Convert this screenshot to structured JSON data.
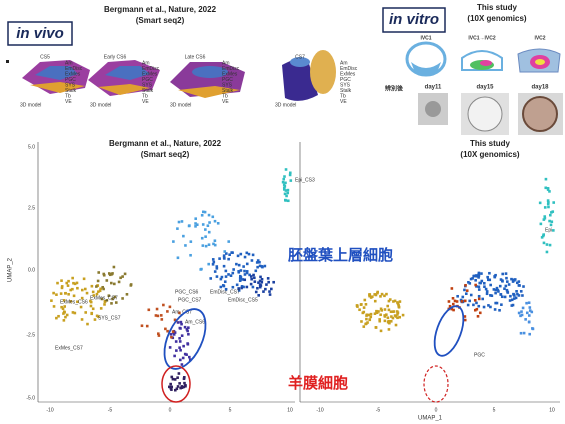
{
  "top_left": {
    "badge": "in vivo",
    "title": "Bergmann et al., Nature, 2022",
    "subtitle": "(Smart seq2)",
    "stages": [
      "CS5",
      "Early CS6",
      "Late CS6",
      "CS7"
    ],
    "model_label": "3D model",
    "legend": [
      "Am",
      "EmDisc",
      "ExMes",
      "PGC",
      "SYS",
      "Stalk",
      "Tb",
      "VE"
    ]
  },
  "top_right": {
    "badge": "in vitro",
    "title": "This study",
    "subtitle": "(10X genomics)",
    "stages": [
      "IVC1",
      "IVC1→IVC2",
      "IVC2"
    ],
    "sorted_label": "辨別後",
    "days": [
      "day11",
      "day15",
      "day18"
    ]
  },
  "plots": [
    {
      "title": "Bergmann et al., Nature, 2022",
      "subtitle": "(Smart seq2)",
      "ylabel": "UMAP_2",
      "yticks": [
        "5.0",
        "2.5",
        "0.0",
        "-2.5",
        "-5.0"
      ],
      "xticks": [
        "-10",
        "-5",
        "0",
        "5",
        "10"
      ],
      "cluster_labels": [
        "Epi_CS3",
        "PGC_CS6",
        "PGC_CS7",
        "EmDisc_CS5",
        "EmDisc_CS7",
        "Am_CS6",
        "Am_CS7",
        "ExMes_CS6",
        "ExMes_CS7",
        "SYS_CS7",
        "ExMes_CS7"
      ]
    },
    {
      "title": "This study",
      "subtitle": "(10X genomics)",
      "xticks": [
        "-10",
        "-5",
        "0",
        "5",
        "10"
      ],
      "cluster_labels": [
        "Epi",
        "PGC"
      ],
      "xlabel": "UMAP_1"
    }
  ],
  "annotations": {
    "epiblast": "胚盤葉上層細胞",
    "amnion": "羊膜細胞"
  }
}
